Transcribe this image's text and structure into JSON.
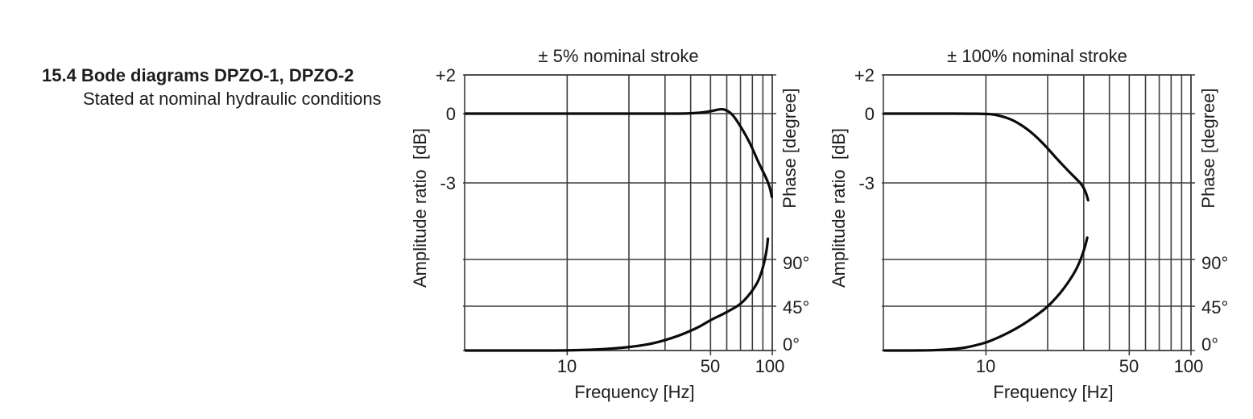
{
  "heading": {
    "line1": "15.4 Bode diagrams DPZO-1, DPZO-2",
    "line2": "Stated at nominal hydraulic conditions"
  },
  "colors": {
    "text": "#1d1d1d",
    "grid": "#3e3e3e",
    "curve": "#0b0b0b",
    "background": "#ffffff"
  },
  "chart_data": [
    {
      "type": "line",
      "title": "± 5% nominal stroke",
      "xlabel": "Frequency [Hz]",
      "ylabel_left": "Amplitude ratio  [dB]",
      "ylabel_right": "Phase [degree]",
      "x_scale": "log",
      "x_range_hz": [
        3.16,
        100
      ],
      "x_gridlines_hz": [
        10,
        20,
        30,
        40,
        50,
        60,
        70,
        80,
        90,
        100
      ],
      "x_tick_labels": [
        {
          "hz": 10,
          "label": "10"
        },
        {
          "hz": 50,
          "label": "50"
        },
        {
          "hz": 100,
          "label": "100"
        }
      ],
      "amp_gridlines_db": [
        2,
        0,
        -3
      ],
      "amp_tick_labels": [
        {
          "db": 2,
          "label": "+2"
        },
        {
          "db": 0,
          "label": "0"
        },
        {
          "db": -3,
          "label": "-3"
        }
      ],
      "phase_gridlines_deg": [
        90,
        45,
        0
      ],
      "phase_tick_labels": [
        {
          "deg": 90,
          "label": "90°"
        },
        {
          "deg": 45,
          "label": "45°"
        },
        {
          "deg": 0,
          "label": "0°"
        }
      ],
      "series": [
        {
          "name": "amplitude",
          "axis": "amp",
          "points": [
            [
              3.2,
              0
            ],
            [
              6,
              0
            ],
            [
              10,
              0
            ],
            [
              15,
              0
            ],
            [
              20,
              0
            ],
            [
              25,
              0
            ],
            [
              30,
              0
            ],
            [
              35,
              0
            ],
            [
              40,
              0.01
            ],
            [
              45,
              0.05
            ],
            [
              50,
              0.12
            ],
            [
              54,
              0.2
            ],
            [
              57,
              0.24
            ],
            [
              60,
              0.17
            ],
            [
              63,
              0.02
            ],
            [
              66,
              -0.2
            ],
            [
              70,
              -0.55
            ],
            [
              75,
              -1.0
            ],
            [
              80,
              -1.5
            ],
            [
              85,
              -2.05
            ],
            [
              90,
              -2.5
            ],
            [
              93,
              -2.75
            ],
            [
              96,
              -3.05
            ],
            [
              98,
              -3.3
            ],
            [
              99.5,
              -3.6
            ]
          ]
        },
        {
          "name": "phase",
          "axis": "phase",
          "points": [
            [
              3.2,
              0
            ],
            [
              6,
              0
            ],
            [
              10,
              0
            ],
            [
              14,
              1
            ],
            [
              18,
              2.5
            ],
            [
              22,
              4.5
            ],
            [
              26,
              7
            ],
            [
              30,
              10.5
            ],
            [
              35,
              15
            ],
            [
              40,
              20
            ],
            [
              45,
              25
            ],
            [
              50,
              31
            ],
            [
              55,
              35
            ],
            [
              60,
              39
            ],
            [
              65,
              43
            ],
            [
              70,
              47
            ],
            [
              75,
              53
            ],
            [
              80,
              60
            ],
            [
              85,
              68
            ],
            [
              88,
              76
            ],
            [
              90,
              82
            ],
            [
              92,
              90
            ],
            [
              93.5,
              97
            ],
            [
              94.6,
              104
            ],
            [
              95.2,
              110
            ]
          ]
        }
      ]
    },
    {
      "type": "line",
      "title": "± 100% nominal stroke",
      "xlabel": "Frequency [Hz]",
      "ylabel_left": "Amplitude ratio  [dB]",
      "ylabel_right": "Phase [degree]",
      "x_scale": "log",
      "x_range_hz": [
        3.16,
        100
      ],
      "x_gridlines_hz": [
        10,
        20,
        30,
        40,
        50,
        60,
        70,
        80,
        90,
        100
      ],
      "x_tick_labels": [
        {
          "hz": 10,
          "label": "10"
        },
        {
          "hz": 50,
          "label": "50"
        },
        {
          "hz": 100,
          "label": "100"
        }
      ],
      "amp_gridlines_db": [
        2,
        0,
        -3
      ],
      "amp_tick_labels": [
        {
          "db": 2,
          "label": "+2"
        },
        {
          "db": 0,
          "label": "0"
        },
        {
          "db": -3,
          "label": "-3"
        }
      ],
      "phase_gridlines_deg": [
        90,
        45,
        0
      ],
      "phase_tick_labels": [
        {
          "deg": 90,
          "label": "90°"
        },
        {
          "deg": 45,
          "label": "45°"
        },
        {
          "deg": 0,
          "label": "0°"
        }
      ],
      "series": [
        {
          "name": "amplitude",
          "axis": "amp",
          "points": [
            [
              3.2,
              0
            ],
            [
              6,
              0
            ],
            [
              8,
              0
            ],
            [
              10,
              -0.01
            ],
            [
              11,
              -0.04
            ],
            [
              12,
              -0.12
            ],
            [
              13,
              -0.22
            ],
            [
              14,
              -0.35
            ],
            [
              16,
              -0.68
            ],
            [
              18,
              -1.08
            ],
            [
              20,
              -1.5
            ],
            [
              22,
              -1.92
            ],
            [
              24,
              -2.28
            ],
            [
              26,
              -2.6
            ],
            [
              28,
              -2.88
            ],
            [
              29.5,
              -3.1
            ],
            [
              30.7,
              -3.4
            ],
            [
              31.5,
              -3.75
            ]
          ]
        },
        {
          "name": "phase",
          "axis": "phase",
          "points": [
            [
              3.2,
              0
            ],
            [
              5,
              0
            ],
            [
              6,
              0.5
            ],
            [
              7,
              1.5
            ],
            [
              8,
              3
            ],
            [
              9,
              5.5
            ],
            [
              10,
              8
            ],
            [
              11,
              11.5
            ],
            [
              12,
              15
            ],
            [
              14,
              22
            ],
            [
              16,
              29.5
            ],
            [
              18,
              37
            ],
            [
              20,
              44.5
            ],
            [
              22,
              53
            ],
            [
              24,
              62
            ],
            [
              26,
              72
            ],
            [
              27.5,
              80
            ],
            [
              28.7,
              88
            ],
            [
              29.6,
              95
            ],
            [
              30.5,
              103
            ],
            [
              31.2,
              111
            ]
          ]
        }
      ]
    }
  ]
}
